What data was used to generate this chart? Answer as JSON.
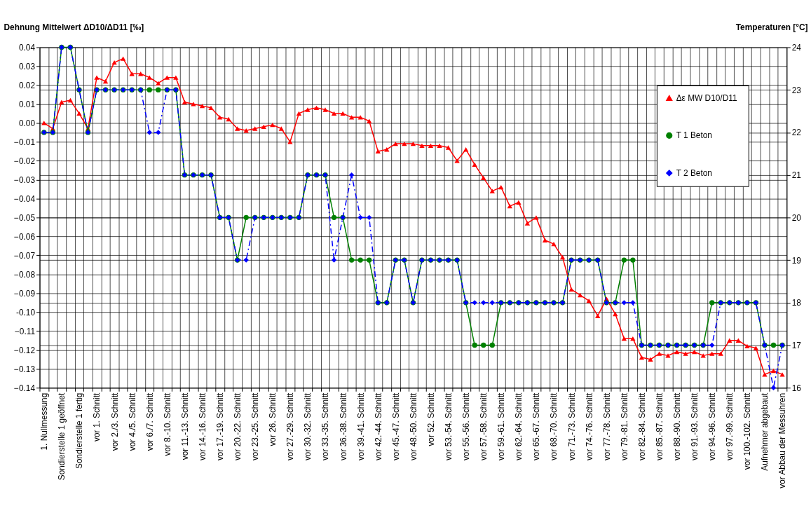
{
  "chart_data": {
    "type": "line",
    "ylabel": "Dehnung Mittelwert ΔD10/ΔD11 [‰]",
    "y2label": "Temperaturen [°C]",
    "categories": [
      "1. Nullmessung",
      null,
      "Sondierstelle 1 geöffnet",
      null,
      "Sondierstelle 1 fertig",
      null,
      "vor 1. Schnitt",
      null,
      "vor 2./3. Schnitt",
      null,
      "vor 4./5. Schnitt",
      null,
      "vor 6./7. Schnitt",
      null,
      "vor 8.-10. Schnitt",
      null,
      "vor 11.-13. Schnitt",
      null,
      "vor 14.-16. Schnitt",
      null,
      "vor 17.-19. Schnitt",
      null,
      "vor 20.-22. Schnitt",
      null,
      "vor 23.-25. Schnitt",
      null,
      "vor 26. Schnitt",
      null,
      "vor 27.-29. Schnitt",
      null,
      "vor 30.-32. Schnitt",
      null,
      "vor 33.-35. Schnitt",
      null,
      "vor 36.-38. Schnitt",
      null,
      "vor 39.-41. Schnitt",
      null,
      "vor 42.-44. Schnitt",
      null,
      "vor 45.-47. Schnitt",
      null,
      "vor 48.-50. Schnitt",
      null,
      "vor 52. Schnitt",
      null,
      "vor 53.-54. Schnitt",
      null,
      "vor 55.-56. Schnitt",
      null,
      "vor 57.-58. Schnitt",
      null,
      "vor 59.-61. Schnitt",
      null,
      "vor 62.-64. Schnitt",
      null,
      "vor 65.-67. Schnitt",
      null,
      "vor 68.-70. Schnitt",
      null,
      "vor 71.-73. Schnitt",
      null,
      "vor 74.-76. Schnitt",
      null,
      "vor 77.-78. Schnitt",
      null,
      "vor 79.-81. Schnitt",
      null,
      "vor 82.-84. Schnitt",
      null,
      "vor 85.-87. Schnitt",
      null,
      "vor 88.-90. Schnitt",
      null,
      "vor 91.-93. Schnitt",
      null,
      "vor 94.-96. Schnitt",
      null,
      "vor 97.-99. Schnitt",
      null,
      "vor 100.-102. Schnitt",
      null,
      "Aufnehmer abgebaut",
      null,
      "vor Abbau der Messuhren"
    ],
    "series": [
      {
        "name": "Δε  MW D10/D11",
        "color": "#ff0000",
        "marker": "triangle",
        "line_style": "solid",
        "values": [
          0.0,
          -0.003,
          0.011,
          0.012,
          0.005,
          -0.003,
          0.024,
          0.022,
          0.032,
          0.034,
          0.026,
          0.026,
          0.024,
          0.021,
          0.024,
          0.024,
          0.011,
          0.01,
          0.009,
          0.008,
          0.003,
          0.002,
          -0.003,
          -0.004,
          -0.003,
          -0.002,
          -0.001,
          -0.003,
          -0.01,
          0.005,
          0.007,
          0.008,
          0.007,
          0.005,
          0.005,
          0.003,
          0.003,
          0.001,
          -0.015,
          -0.014,
          -0.011,
          -0.011,
          -0.011,
          -0.012,
          -0.012,
          -0.012,
          -0.013,
          -0.02,
          -0.014,
          -0.022,
          -0.029,
          -0.036,
          -0.034,
          -0.044,
          -0.042,
          -0.053,
          -0.05,
          -0.062,
          -0.064,
          -0.071,
          -0.088,
          -0.091,
          -0.094,
          -0.102,
          -0.093,
          -0.101,
          -0.114,
          -0.114,
          -0.124,
          -0.125,
          -0.122,
          -0.123,
          -0.121,
          -0.122,
          -0.121,
          -0.123,
          -0.122,
          -0.122,
          -0.115,
          -0.115,
          -0.118,
          -0.119,
          -0.133,
          -0.131,
          -0.133
        ]
      },
      {
        "name": "T 1 Beton",
        "color": "#008000",
        "marker": "circle",
        "line_style": "solid",
        "axis": "y2",
        "values": [
          22,
          22,
          24,
          24,
          23,
          22,
          23,
          23,
          23,
          23,
          23,
          23,
          23,
          23,
          23,
          23,
          21,
          21,
          21,
          21,
          20,
          20,
          19,
          20,
          20,
          20,
          20,
          20,
          20,
          20,
          21,
          21,
          21,
          20,
          20,
          19,
          19,
          19,
          18,
          18,
          19,
          19,
          18,
          19,
          19,
          19,
          19,
          19,
          18,
          17,
          17,
          17,
          18,
          18,
          18,
          18,
          18,
          18,
          18,
          18,
          19,
          19,
          19,
          19,
          18,
          18,
          19,
          19,
          17,
          17,
          17,
          17,
          17,
          17,
          17,
          17,
          18,
          18,
          18,
          18,
          18,
          18,
          17,
          17,
          17
        ]
      },
      {
        "name": "T 2 Beton",
        "color": "#0000ff",
        "marker": "diamond",
        "line_style": "dashed",
        "axis": "y2",
        "values": [
          22,
          22,
          24,
          24,
          23,
          22,
          23,
          23,
          23,
          23,
          23,
          23,
          22,
          22,
          23,
          23,
          21,
          21,
          21,
          21,
          20,
          20,
          19,
          19,
          20,
          20,
          20,
          20,
          20,
          20,
          21,
          21,
          21,
          19,
          20,
          21,
          20,
          20,
          18,
          18,
          19,
          19,
          18,
          19,
          19,
          19,
          19,
          19,
          18,
          18,
          18,
          18,
          18,
          18,
          18,
          18,
          18,
          18,
          18,
          18,
          19,
          19,
          19,
          19,
          18,
          18,
          18,
          18,
          17,
          17,
          17,
          17,
          17,
          17,
          17,
          17,
          17,
          18,
          18,
          18,
          18,
          18,
          17,
          16,
          17
        ]
      }
    ],
    "ylim": [
      -0.14,
      0.04
    ],
    "yticks": [
      0.04,
      0.03,
      0.02,
      0.01,
      {
        "value": 0,
        "label": "0.00"
      },
      -0.01,
      -0.02,
      -0.03,
      -0.04,
      -0.05,
      -0.06,
      -0.07,
      -0.08,
      -0.09,
      {
        "value": -0.1,
        "label": "-0.10"
      },
      -0.11,
      -0.12,
      -0.13,
      -0.14
    ],
    "y2lim": [
      16,
      24
    ],
    "y2ticks": [
      16,
      17,
      18,
      19,
      20,
      21,
      22,
      23,
      24
    ],
    "grid": true,
    "legend": "top right"
  }
}
